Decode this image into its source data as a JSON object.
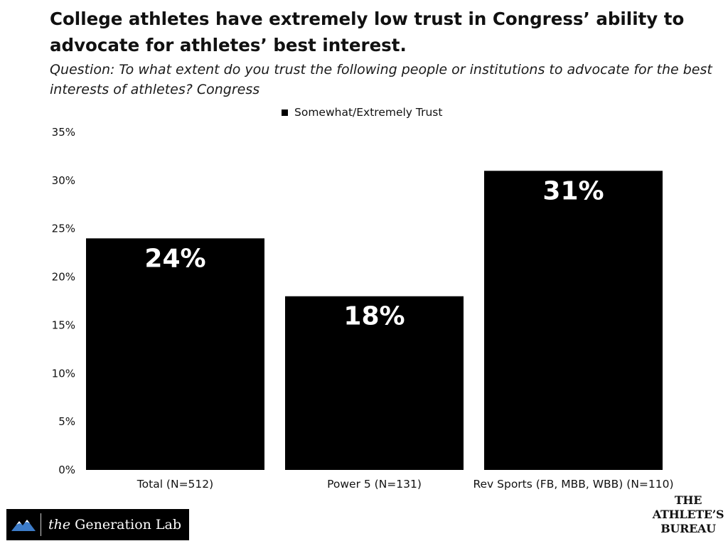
{
  "chart_data": {
    "type": "bar",
    "title": "College athletes have extremely low trust in Congress’ ability to advocate for athletes’ best interest.",
    "subtitle": "Question: To what extent do you trust the following people or institutions to advocate for the best interests of athletes? Congress",
    "categories": [
      "Total (N=512)",
      "Power 5 (N=131)",
      "Rev Sports (FB, MBB, WBB) (N=110)"
    ],
    "series": [
      {
        "name": "Somewhat/Extremely Trust",
        "values": [
          24,
          18,
          31
        ],
        "color": "#000000"
      }
    ],
    "data_labels": [
      "24%",
      "18%",
      "31%"
    ],
    "ylim": [
      0,
      35
    ],
    "yticks": [
      0,
      5,
      10,
      15,
      20,
      25,
      30,
      35
    ],
    "ytick_labels": [
      "0%",
      "5%",
      "10%",
      "15%",
      "20%",
      "25%",
      "30%",
      "35%"
    ],
    "xlabel": "",
    "ylabel": "",
    "grid": false,
    "legend_position": "top-center"
  },
  "logos": {
    "left": {
      "prefix": "the",
      "name": "Generation Lab",
      "icon": "mountain-logo-icon"
    },
    "right": {
      "lines": [
        "THE",
        "ATHLETE’S",
        "BUREAU"
      ]
    }
  }
}
